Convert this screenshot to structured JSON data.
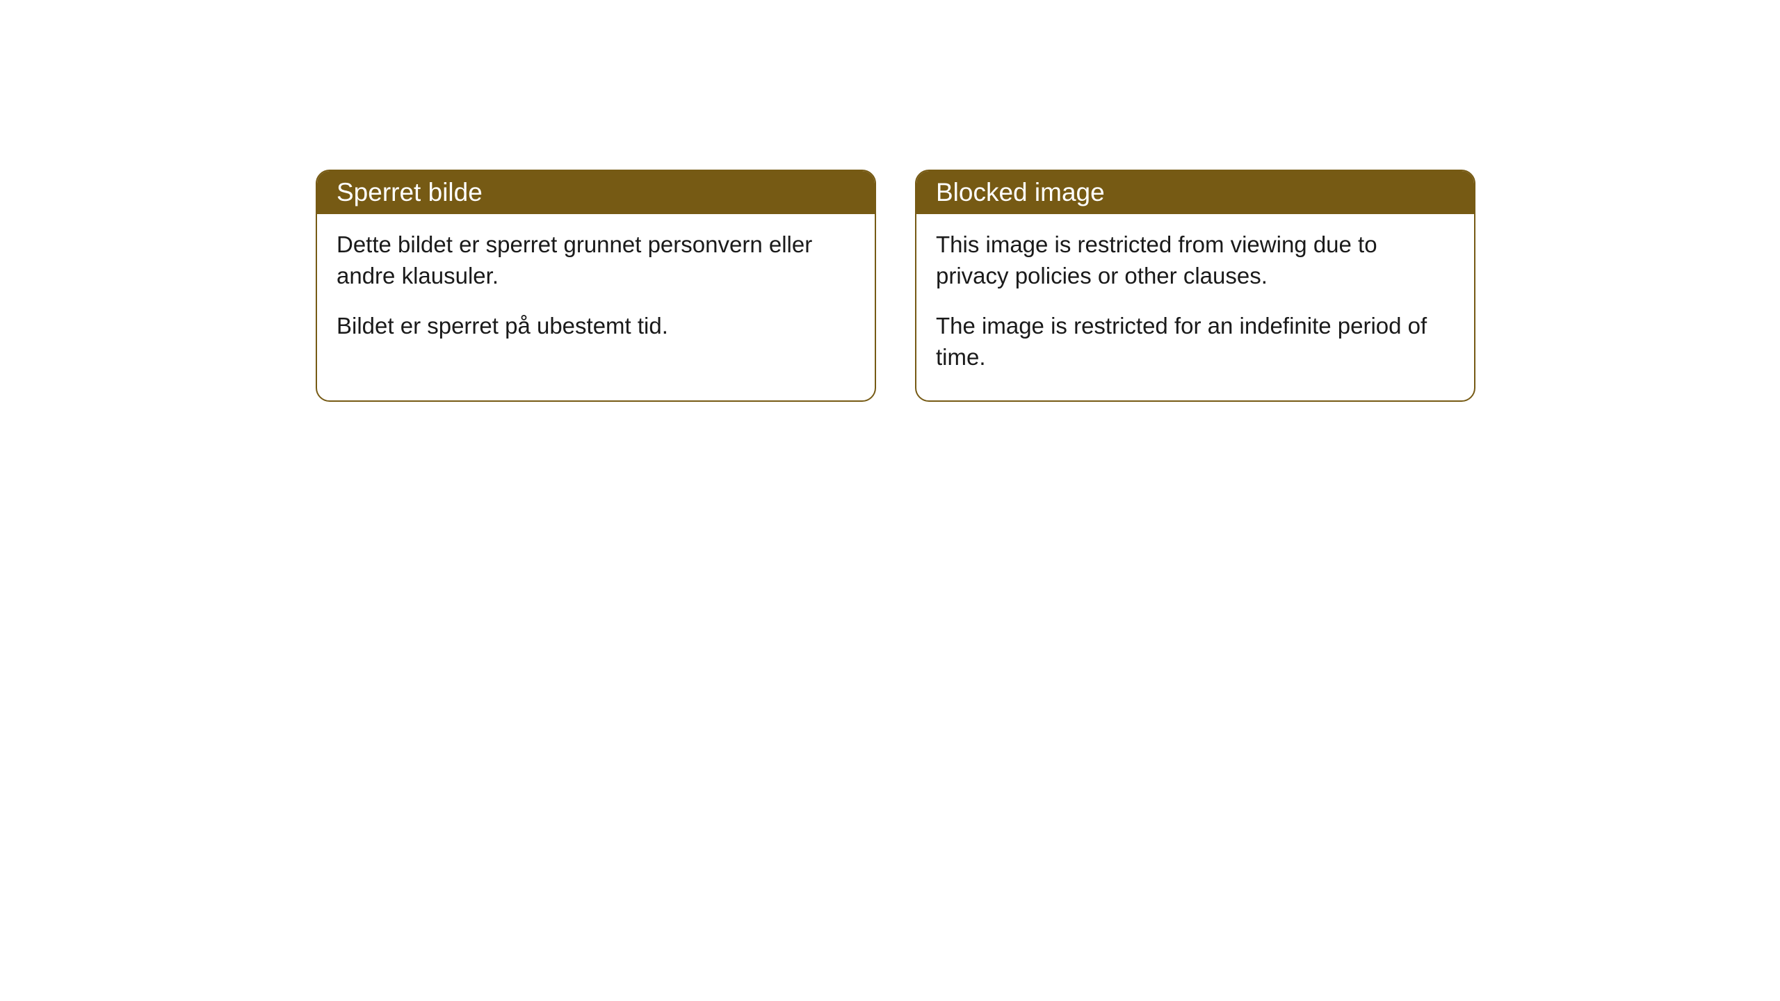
{
  "cards": [
    {
      "title": "Sperret bilde",
      "paragraph1": "Dette bildet er sperret grunnet personvern eller andre klausuler.",
      "paragraph2": "Bildet er sperret på ubestemt tid."
    },
    {
      "title": "Blocked image",
      "paragraph1": "This image is restricted from viewing due to privacy policies or other clauses.",
      "paragraph2": "The image is restricted for an indefinite period of time."
    }
  ],
  "styling": {
    "header_background": "#765a14",
    "header_text_color": "#ffffff",
    "border_color": "#765a14",
    "body_background": "#ffffff",
    "body_text_color": "#1a1a1a",
    "border_radius": 20,
    "header_fontsize": 37,
    "body_fontsize": 33
  }
}
